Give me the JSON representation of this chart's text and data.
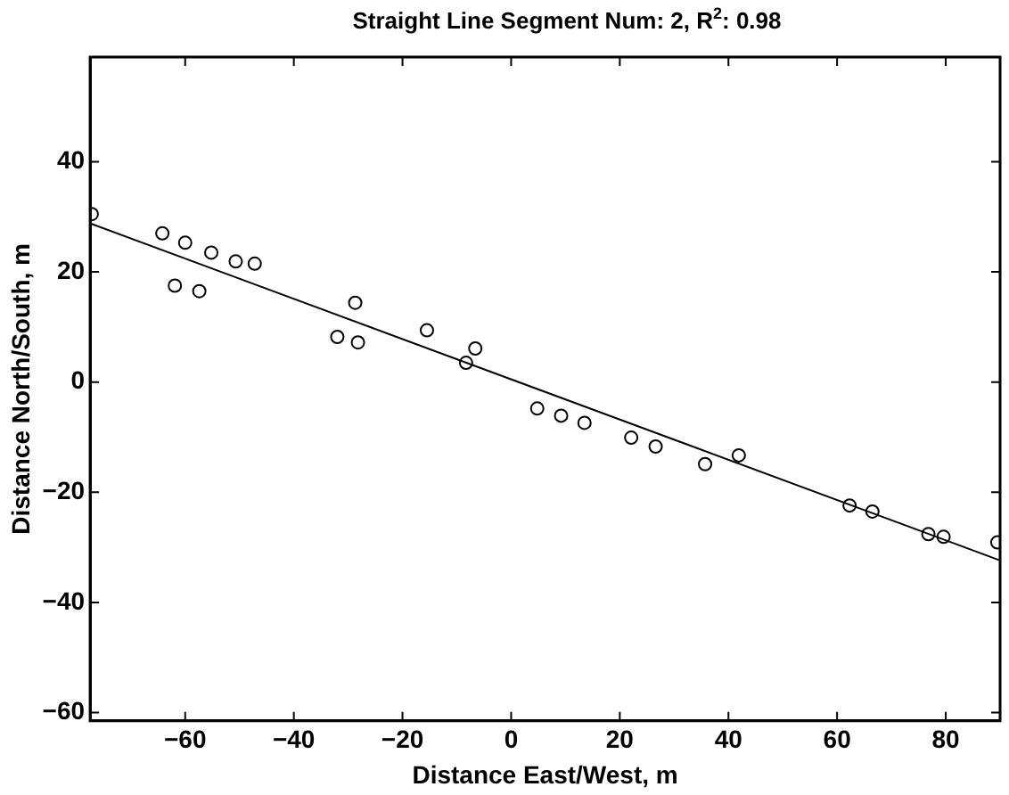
{
  "chart_data": {
    "type": "scatter",
    "title": "Straight Line Segment Num: 2, R$^{2}$: 0.98",
    "xlabel": "Distance East/West, m",
    "ylabel": "Distance North/South, m",
    "xlim": [
      -77.5,
      90
    ],
    "ylim": [
      -61.5,
      59
    ],
    "xticks": [
      -60,
      -40,
      -20,
      0,
      20,
      40,
      60,
      80
    ],
    "yticks": [
      -60,
      -40,
      -20,
      0,
      20,
      40
    ],
    "grid": false,
    "legend": false,
    "marker": "circle",
    "series": [
      {
        "type": "scatter",
        "color": "#000000",
        "x": [
          -77.2,
          -64.2,
          -60.0,
          -55.2,
          -50.7,
          -47.2,
          -61.9,
          -57.4,
          -28.7,
          -32.0,
          -28.2,
          -15.5,
          -8.3,
          -6.6,
          4.8,
          9.2,
          13.5,
          22.1,
          26.6,
          35.7,
          41.9,
          62.3,
          66.5,
          76.8,
          79.6,
          89.5
        ],
        "values": [
          30.5,
          27.0,
          25.3,
          23.5,
          21.9,
          21.5,
          17.5,
          16.5,
          14.4,
          8.2,
          7.2,
          9.4,
          3.5,
          6.1,
          -4.8,
          -6.1,
          -7.4,
          -10.1,
          -11.7,
          -14.9,
          -13.3,
          -22.4,
          -23.5,
          -27.6,
          -28.1,
          -29.1
        ]
      },
      {
        "type": "line",
        "color": "#000000",
        "x": [
          -77.2,
          89.8
        ],
        "values": [
          28.7,
          -32.3
        ],
        "marker": "none",
        "line_style": "solid"
      }
    ]
  }
}
